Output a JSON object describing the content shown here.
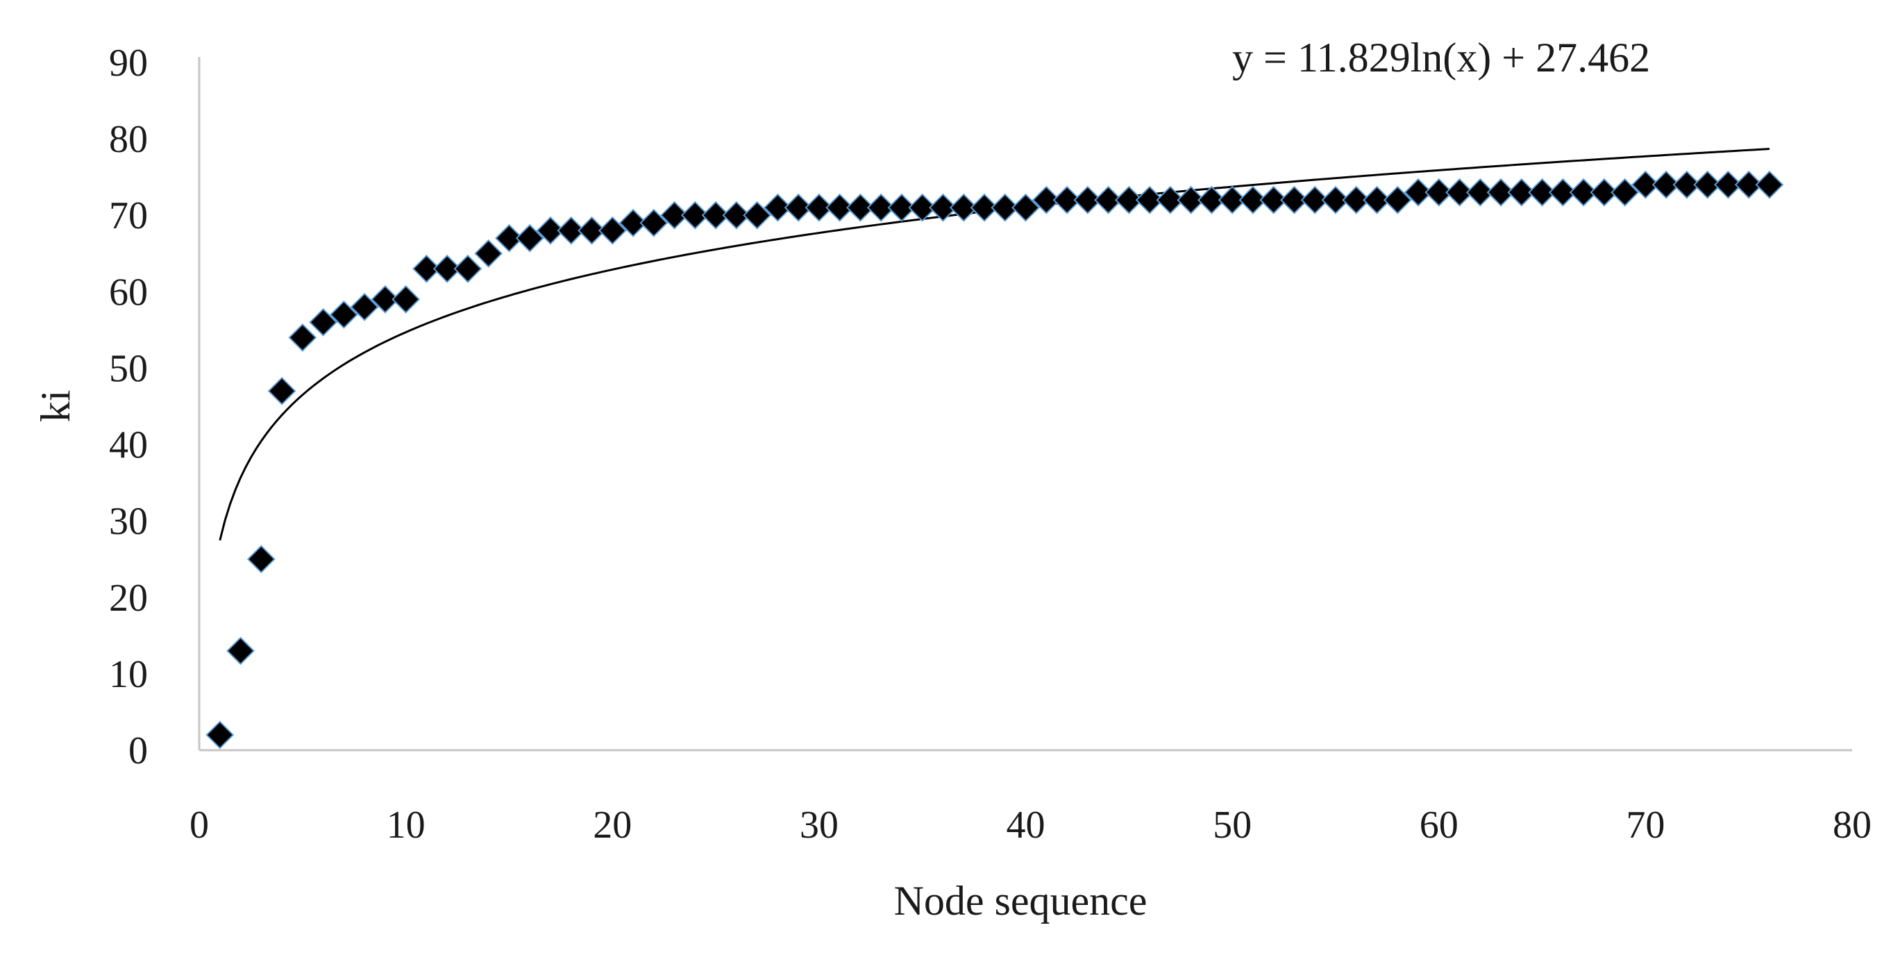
{
  "chart_data": {
    "type": "scatter",
    "title": "",
    "xlabel": "Node sequence",
    "ylabel": "ki",
    "xlim": [
      0,
      80
    ],
    "ylim": [
      0,
      90
    ],
    "x_ticks": [
      "0",
      "10",
      "20",
      "30",
      "40",
      "50",
      "60",
      "70",
      "80"
    ],
    "y_ticks": [
      "0",
      "10",
      "20",
      "30",
      "40",
      "50",
      "60",
      "70",
      "80",
      "90"
    ],
    "grid": false,
    "legend": "none",
    "marker": "diamond",
    "marker_color": "#000000",
    "marker_edge_color": "#5b9bd5",
    "series": [
      {
        "x": [
          1,
          2,
          3,
          4,
          5,
          6,
          7,
          8,
          9,
          10,
          11,
          12,
          13,
          14,
          15,
          16,
          17,
          18,
          19,
          20,
          21,
          22,
          23,
          24,
          25,
          26,
          27,
          28,
          29,
          30,
          31,
          32,
          33,
          34,
          35,
          36,
          37,
          38,
          39,
          40,
          41,
          42,
          43,
          44,
          45,
          46,
          47,
          48,
          49,
          50,
          51,
          52,
          53,
          54,
          55,
          56,
          57,
          58,
          59,
          60,
          61,
          62,
          63,
          64,
          65,
          66,
          67,
          68,
          69,
          70,
          71,
          72,
          73,
          74,
          75,
          76
        ],
        "y": [
          2,
          13,
          25,
          47,
          54,
          56,
          57,
          58,
          59,
          59,
          63,
          63,
          63,
          65,
          67,
          67,
          68,
          68,
          68,
          68,
          69,
          69,
          70,
          70,
          70,
          70,
          70,
          71,
          71,
          71,
          71,
          71,
          71,
          71,
          71,
          71,
          71,
          71,
          71,
          71,
          72,
          72,
          72,
          72,
          72,
          72,
          72,
          72,
          72,
          72,
          72,
          72,
          72,
          72,
          72,
          72,
          72,
          72,
          73,
          73,
          73,
          73,
          73,
          73,
          73,
          73,
          73,
          73,
          73,
          74,
          74,
          74,
          74,
          74,
          74,
          74
        ]
      }
    ],
    "trendline": {
      "type": "logarithmic",
      "a": 11.829,
      "b": 27.462,
      "x_range": [
        1,
        76
      ],
      "color": "#000000"
    },
    "annotations": [
      {
        "text": "y = 11.829ln(x) + 27.462"
      }
    ]
  }
}
